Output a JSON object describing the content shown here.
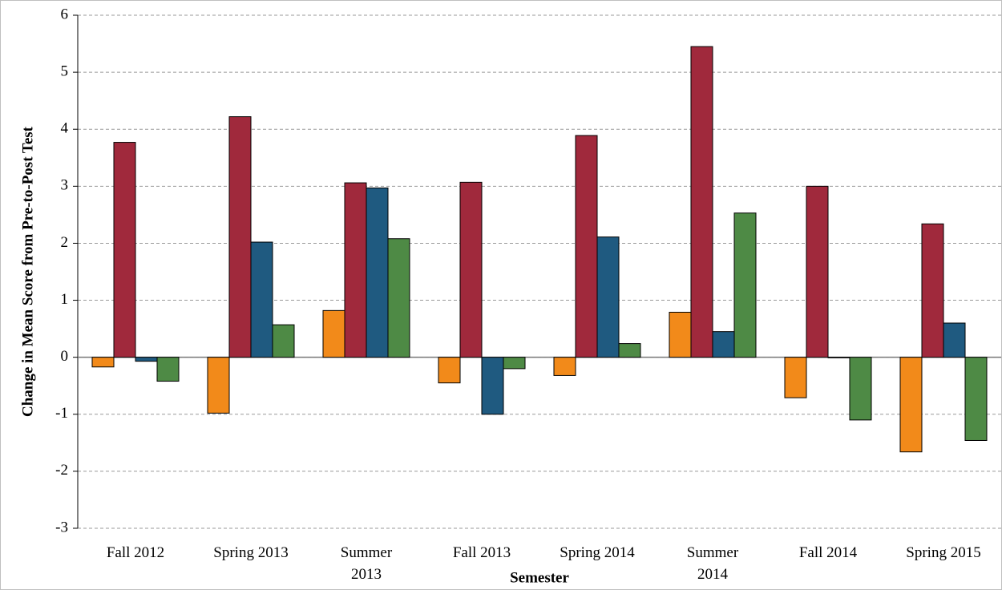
{
  "chart_data": {
    "type": "bar",
    "x_label": "Semester",
    "y_label": "Change in Mean Score from Pre-to-Post Test",
    "categories": [
      "Fall 2012",
      "Spring 2013",
      "Summer\n2013",
      "Fall 2013",
      "Spring 2014",
      "Summer\n2014",
      "Fall 2014",
      "Spring 2015"
    ],
    "series": [
      {
        "color": "#f28a1a",
        "values": [
          -0.17,
          -0.98,
          0.82,
          -0.45,
          -0.32,
          0.79,
          -0.71,
          -1.66
        ]
      },
      {
        "color": "#a0293c",
        "values": [
          3.77,
          4.22,
          3.06,
          3.07,
          3.89,
          5.45,
          3.0,
          2.34
        ]
      },
      {
        "color": "#1f5a80",
        "values": [
          -0.07,
          2.02,
          2.97,
          -1.0,
          2.11,
          0.45,
          -0.01,
          0.6
        ]
      },
      {
        "color": "#4e8a45",
        "values": [
          -0.42,
          0.57,
          2.08,
          -0.2,
          0.24,
          2.53,
          -1.1,
          -1.46
        ]
      }
    ],
    "ylim": [
      -3,
      6
    ],
    "yticks": [
      -3,
      -2,
      -1,
      0,
      1,
      2,
      3,
      4,
      5,
      6
    ],
    "grid": true
  }
}
